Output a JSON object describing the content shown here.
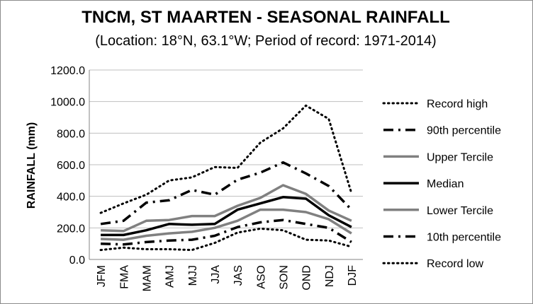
{
  "chart_data": {
    "type": "line",
    "title": "TNCM, ST MAARTEN - SEASONAL RAINFALL",
    "subtitle": "(Location: 18°N, 63.1°W; Period of record: 1971-2014)",
    "xlabel": "",
    "ylabel": "RAINFALL (mm)",
    "ylim": [
      0,
      1200
    ],
    "y_ticks": [
      "0.0",
      "200.0",
      "400.0",
      "600.0",
      "800.0",
      "1000.0",
      "1200.0"
    ],
    "grid": true,
    "legend_position": "right",
    "categories": [
      "JFM",
      "FMA",
      "MAM",
      "AMJ",
      "MJJ",
      "JJA",
      "JAS",
      "ASO",
      "SON",
      "OND",
      "NDJ",
      "DJF"
    ],
    "series": [
      {
        "name": "Record high",
        "style": "dotted",
        "color": "#000000",
        "values": [
          295,
          355,
          410,
          500,
          520,
          585,
          580,
          740,
          830,
          975,
          890,
          420
        ]
      },
      {
        "name": "90th percentile",
        "style": "dashdot",
        "color": "#000000",
        "values": [
          225,
          245,
          360,
          375,
          440,
          410,
          505,
          550,
          615,
          545,
          465,
          315
        ]
      },
      {
        "name": "Upper Tercile",
        "style": "solid",
        "color": "#808080",
        "values": [
          185,
          180,
          245,
          250,
          275,
          275,
          340,
          390,
          470,
          415,
          310,
          245
        ]
      },
      {
        "name": "Median",
        "style": "solid",
        "color": "#000000",
        "values": [
          155,
          155,
          185,
          225,
          220,
          225,
          315,
          355,
          395,
          385,
          280,
          205
        ]
      },
      {
        "name": "Lower Tercile",
        "style": "solid",
        "color": "#808080",
        "values": [
          130,
          125,
          150,
          165,
          175,
          200,
          245,
          315,
          315,
          300,
          255,
          165
        ]
      },
      {
        "name": "10th percentile",
        "style": "dashdot",
        "color": "#000000",
        "values": [
          100,
          95,
          110,
          120,
          125,
          150,
          205,
          235,
          250,
          225,
          200,
          110
        ]
      },
      {
        "name": "Record low",
        "style": "dotted",
        "color": "#000000",
        "values": [
          60,
          75,
          65,
          65,
          60,
          105,
          170,
          195,
          185,
          125,
          120,
          80
        ]
      }
    ]
  }
}
